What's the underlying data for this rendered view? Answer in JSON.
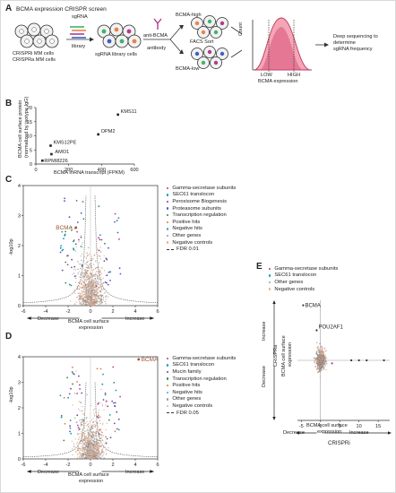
{
  "panels": {
    "A": {
      "letter": "A",
      "title": "BCMA expression CRISPR screen",
      "cells_label_1": "CRISPRi MM cells",
      "cells_label_2": "CRISPRa MM cells",
      "lib_label_1": "sgRNA",
      "lib_label_2": "library",
      "lib_cells_label": "sgRNA library cells",
      "antibody_label_1": "anti-BCMA",
      "antibody_label_2": "antibody",
      "high_label": "BCMA-high",
      "low_label": "BCMA-low",
      "facs_label": "FACS Sort",
      "count_label": "Count",
      "low_gate": "LOW",
      "high_gate": "HIGH",
      "hist_xlabel": "BCMA expression",
      "seq_label_1": "Deep sequencing to",
      "seq_label_2": "determine",
      "seq_label_3": "sgRNA frequency",
      "colors": {
        "cell": "#f0f0f0",
        "green": "#3cb371",
        "orange": "#e8844a",
        "purple": "#b03b8c",
        "pink": "#d9507a"
      }
    },
    "B": {
      "letter": "B",
      "chart_data": {
        "type": "scatter",
        "xlabel": "BCMA mRNA transcript (FPKM)",
        "ylabel_1": "BCMA cell surface protein",
        "ylabel_2": "(normalized by isotype IgG)",
        "xlim": [
          0,
          600
        ],
        "ylim": [
          0,
          20
        ],
        "xticks": [
          "0",
          "200",
          "400",
          "600"
        ],
        "yticks": [
          "0",
          "5",
          "10",
          "15",
          "20"
        ],
        "points": [
          {
            "name": "KMS11",
            "x": 500,
            "y": 17.5
          },
          {
            "name": "OPM2",
            "x": 380,
            "y": 10.5
          },
          {
            "name": "KMS12PE",
            "x": 90,
            "y": 6.5
          },
          {
            "name": "AMO1",
            "x": 95,
            "y": 3.5
          },
          {
            "name": "RPMI8226",
            "x": 40,
            "y": 1.2
          }
        ]
      }
    },
    "C": {
      "letter": "C",
      "chart_data": {
        "type": "scatter",
        "xlabel_1": "BCMA cell surface",
        "xlabel_2": "expression",
        "ylabel": "-log10p",
        "xlim": [
          -6,
          6
        ],
        "ylim": [
          0,
          4
        ],
        "xticks": [
          "-6",
          "-4",
          "-2",
          "0",
          "2",
          "4",
          "6"
        ],
        "yticks": [
          "0",
          "1",
          "2",
          "3",
          "4"
        ],
        "decrease_label": "Decrease",
        "increase_label": "Increase",
        "highlight": {
          "name": "BCMA",
          "x": -1.3,
          "y": 2.6
        },
        "legend": [
          {
            "label": "Gamma-secretase subunits",
            "color": "#b03b8c"
          },
          {
            "label": "SEC61 translocon",
            "color": "#00a0b0"
          },
          {
            "label": "Peroxisome Biogenesis",
            "color": "#7b3fa0"
          },
          {
            "label": "Proteasome subunits",
            "color": "#3a5fcd"
          },
          {
            "label": "Transcription regulation",
            "color": "#2e8b57"
          },
          {
            "label": "Positive hits",
            "color": "#e07a4a"
          },
          {
            "label": "Negative hits",
            "color": "#5aa0d0"
          },
          {
            "label": "Other genes",
            "color": "#9a9a9a"
          },
          {
            "label": "Negative controls",
            "color": "#e0b090"
          },
          {
            "label": "FDR 0.01",
            "color": "#333333",
            "dash": true
          }
        ]
      }
    },
    "D": {
      "letter": "D",
      "chart_data": {
        "type": "scatter",
        "xlabel_1": "BCMA cell surface",
        "xlabel_2": "expression",
        "ylabel": "-log10p",
        "xlim": [
          -6,
          6
        ],
        "ylim": [
          0,
          4
        ],
        "xticks": [
          "-6",
          "-4",
          "-2",
          "0",
          "2",
          "4",
          "6"
        ],
        "yticks": [
          "0",
          "1",
          "2",
          "3",
          "4"
        ],
        "decrease_label": "Decrease",
        "increase_label": "Increase",
        "highlight": {
          "name": "BCMA",
          "x": 4.3,
          "y": 3.9
        },
        "legend": [
          {
            "label": "Gamma-secretase subunits",
            "color": "#b03b8c"
          },
          {
            "label": "SEC61 translocon",
            "color": "#00a0b0"
          },
          {
            "label": "Mucin family",
            "color": "#7b3fa0"
          },
          {
            "label": "Transcription regulation",
            "color": "#2e8b57"
          },
          {
            "label": "Positive hits",
            "color": "#e07a4a"
          },
          {
            "label": "Negative hits",
            "color": "#5aa0d0"
          },
          {
            "label": "Other genes",
            "color": "#9a9a9a"
          },
          {
            "label": "Negative controls",
            "color": "#e0b090"
          },
          {
            "label": "FDR 0.05",
            "color": "#333333",
            "dash": true
          }
        ]
      }
    },
    "E": {
      "letter": "E",
      "chart_data": {
        "type": "scatter",
        "xlabel_1": "BCMA cell surface",
        "xlabel_2": "expression",
        "xlabel_3": "CRISPRi",
        "ylabel_1": "CRISPRa",
        "ylabel_2": "BCMA cell surface",
        "ylabel_3": "expression",
        "xlim": [
          -6,
          18
        ],
        "ylim": [
          -6,
          6
        ],
        "xticks": [
          "-5",
          "0",
          "5",
          "10",
          "15"
        ],
        "decrease_label": "Decrease",
        "increase_label": "Increase",
        "highlights": [
          {
            "name": "BCMA",
            "x": -4.5,
            "y": 5.5
          },
          {
            "name": "POU2AF1",
            "x": -1.0,
            "y": 3.0
          }
        ],
        "legend": [
          {
            "label": "Gamma-secretase subunits",
            "color": "#b03b8c"
          },
          {
            "label": "SEC61 translocon",
            "color": "#00a0b0"
          },
          {
            "label": "Other genes",
            "color": "#9a9a9a"
          },
          {
            "label": "Negative controls",
            "color": "#e0b090"
          }
        ]
      }
    }
  }
}
